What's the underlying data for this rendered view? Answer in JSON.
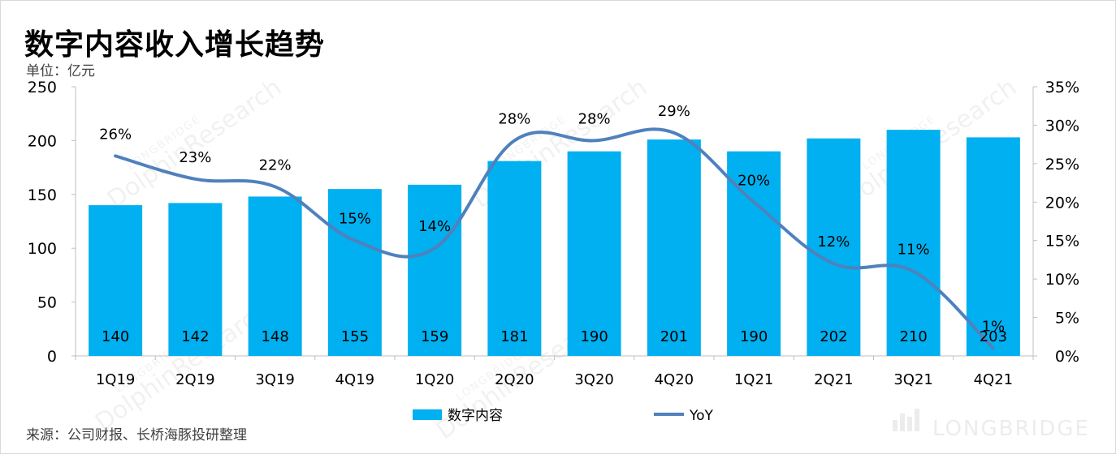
{
  "header": {
    "title": "数字内容收入增长趋势",
    "unit": "单位：亿元"
  },
  "footer": {
    "source": "来源：公司财报、长桥海豚投研整理"
  },
  "watermark": {
    "brand": "LONGBRIDGE",
    "text": "DolphinResearch"
  },
  "colors": {
    "bar": "#00b0f0",
    "line": "#4f81bd"
  },
  "chart_data": {
    "type": "bar",
    "categories": [
      "1Q19",
      "2Q19",
      "3Q19",
      "4Q19",
      "1Q20",
      "2Q20",
      "3Q20",
      "4Q20",
      "1Q21",
      "2Q21",
      "3Q21",
      "4Q21"
    ],
    "series": [
      {
        "name": "数字内容",
        "type": "bar",
        "axis": "left",
        "values": [
          140,
          142,
          148,
          155,
          159,
          181,
          190,
          201,
          190,
          202,
          210,
          203
        ]
      },
      {
        "name": "YoY",
        "type": "line",
        "axis": "right",
        "values": [
          26,
          23,
          22,
          15,
          14,
          28,
          28,
          29,
          20,
          12,
          11,
          1
        ],
        "labels": [
          "26%",
          "23%",
          "22%",
          "15%",
          "14%",
          "28%",
          "28%",
          "29%",
          "20%",
          "12%",
          "11%",
          "1%"
        ]
      }
    ],
    "y_left": {
      "ylim": [
        0,
        250
      ],
      "ticks": [
        "0",
        "50",
        "100",
        "150",
        "200",
        "250"
      ]
    },
    "y_right": {
      "ylim": [
        0,
        35
      ],
      "ticks": [
        "0%",
        "5%",
        "10%",
        "15%",
        "20%",
        "25%",
        "30%",
        "35%"
      ]
    },
    "legend": {
      "placement": "bottom-center"
    },
    "grid": false
  }
}
